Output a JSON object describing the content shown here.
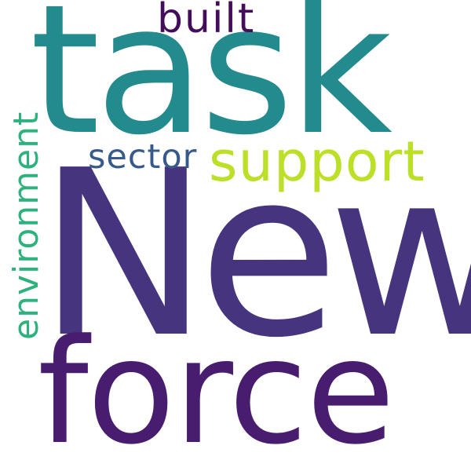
{
  "words": {
    "task": {
      "text": "task",
      "color": "#238a8d"
    },
    "new": {
      "text": "New",
      "color": "#46347f"
    },
    "force": {
      "text": "force",
      "color": "#481c6e"
    },
    "support": {
      "text": "support",
      "color": "#bcdf27"
    },
    "built": {
      "text": "built",
      "color": "#440d5b"
    },
    "sector": {
      "text": "sector",
      "color": "#375a8c"
    },
    "environment": {
      "text": "environment",
      "color": "#2db27d"
    }
  },
  "background_color": "#ffffff"
}
